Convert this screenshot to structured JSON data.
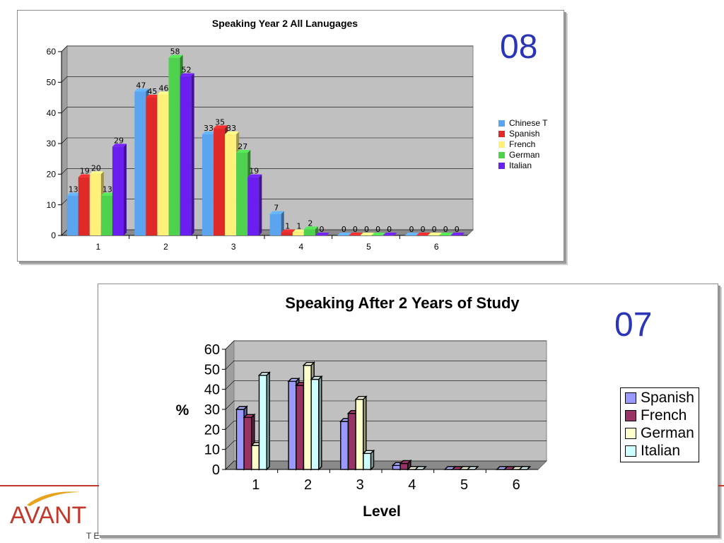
{
  "footer": {
    "logo_text": "AVANT",
    "logo_tag": "TE"
  },
  "chart_data": [
    {
      "type": "bar",
      "stamp": "08",
      "title": "Speaking Year 2 All Lanugages",
      "xlabel": "",
      "ylabel": "",
      "ylim": [
        0,
        60
      ],
      "yticks": [
        0,
        10,
        20,
        30,
        40,
        50,
        60
      ],
      "categories": [
        "1",
        "2",
        "3",
        "4",
        "5",
        "6"
      ],
      "grid": true,
      "legend_position": "right",
      "data_labels": true,
      "series": [
        {
          "name": "Chinese T",
          "color": "#5aa4f0",
          "values": [
            13,
            47,
            33,
            7,
            0,
            0
          ]
        },
        {
          "name": "Spanish",
          "color": "#e02a2a",
          "values": [
            19,
            45,
            35,
            1,
            0,
            0
          ]
        },
        {
          "name": "French",
          "color": "#fff07a",
          "values": [
            20,
            46,
            33,
            1,
            0,
            0
          ]
        },
        {
          "name": "German",
          "color": "#4ed24e",
          "values": [
            13,
            58,
            27,
            2,
            0,
            0
          ]
        },
        {
          "name": "Italian",
          "color": "#6a1ff0",
          "values": [
            29,
            52,
            19,
            0,
            0,
            0
          ]
        }
      ]
    },
    {
      "type": "bar",
      "stamp": "07",
      "title": "Speaking After 2 Years of Study",
      "xlabel": "Level",
      "ylabel": "%",
      "ylim": [
        0,
        60
      ],
      "yticks": [
        0,
        10,
        20,
        30,
        40,
        50,
        60
      ],
      "categories": [
        "1",
        "2",
        "3",
        "4",
        "5",
        "6"
      ],
      "grid": true,
      "legend_position": "right",
      "data_labels": false,
      "series": [
        {
          "name": "Spanish",
          "color": "#9999ff",
          "values": [
            30,
            44,
            24,
            2,
            0,
            0
          ]
        },
        {
          "name": "French",
          "color": "#993366",
          "values": [
            26,
            42,
            28,
            3,
            0,
            0
          ]
        },
        {
          "name": "German",
          "color": "#ffffcc",
          "values": [
            12,
            52,
            35,
            0,
            0,
            0
          ]
        },
        {
          "name": "Italian",
          "color": "#ccffff",
          "values": [
            47,
            45,
            8,
            0,
            0,
            0
          ]
        }
      ]
    }
  ]
}
